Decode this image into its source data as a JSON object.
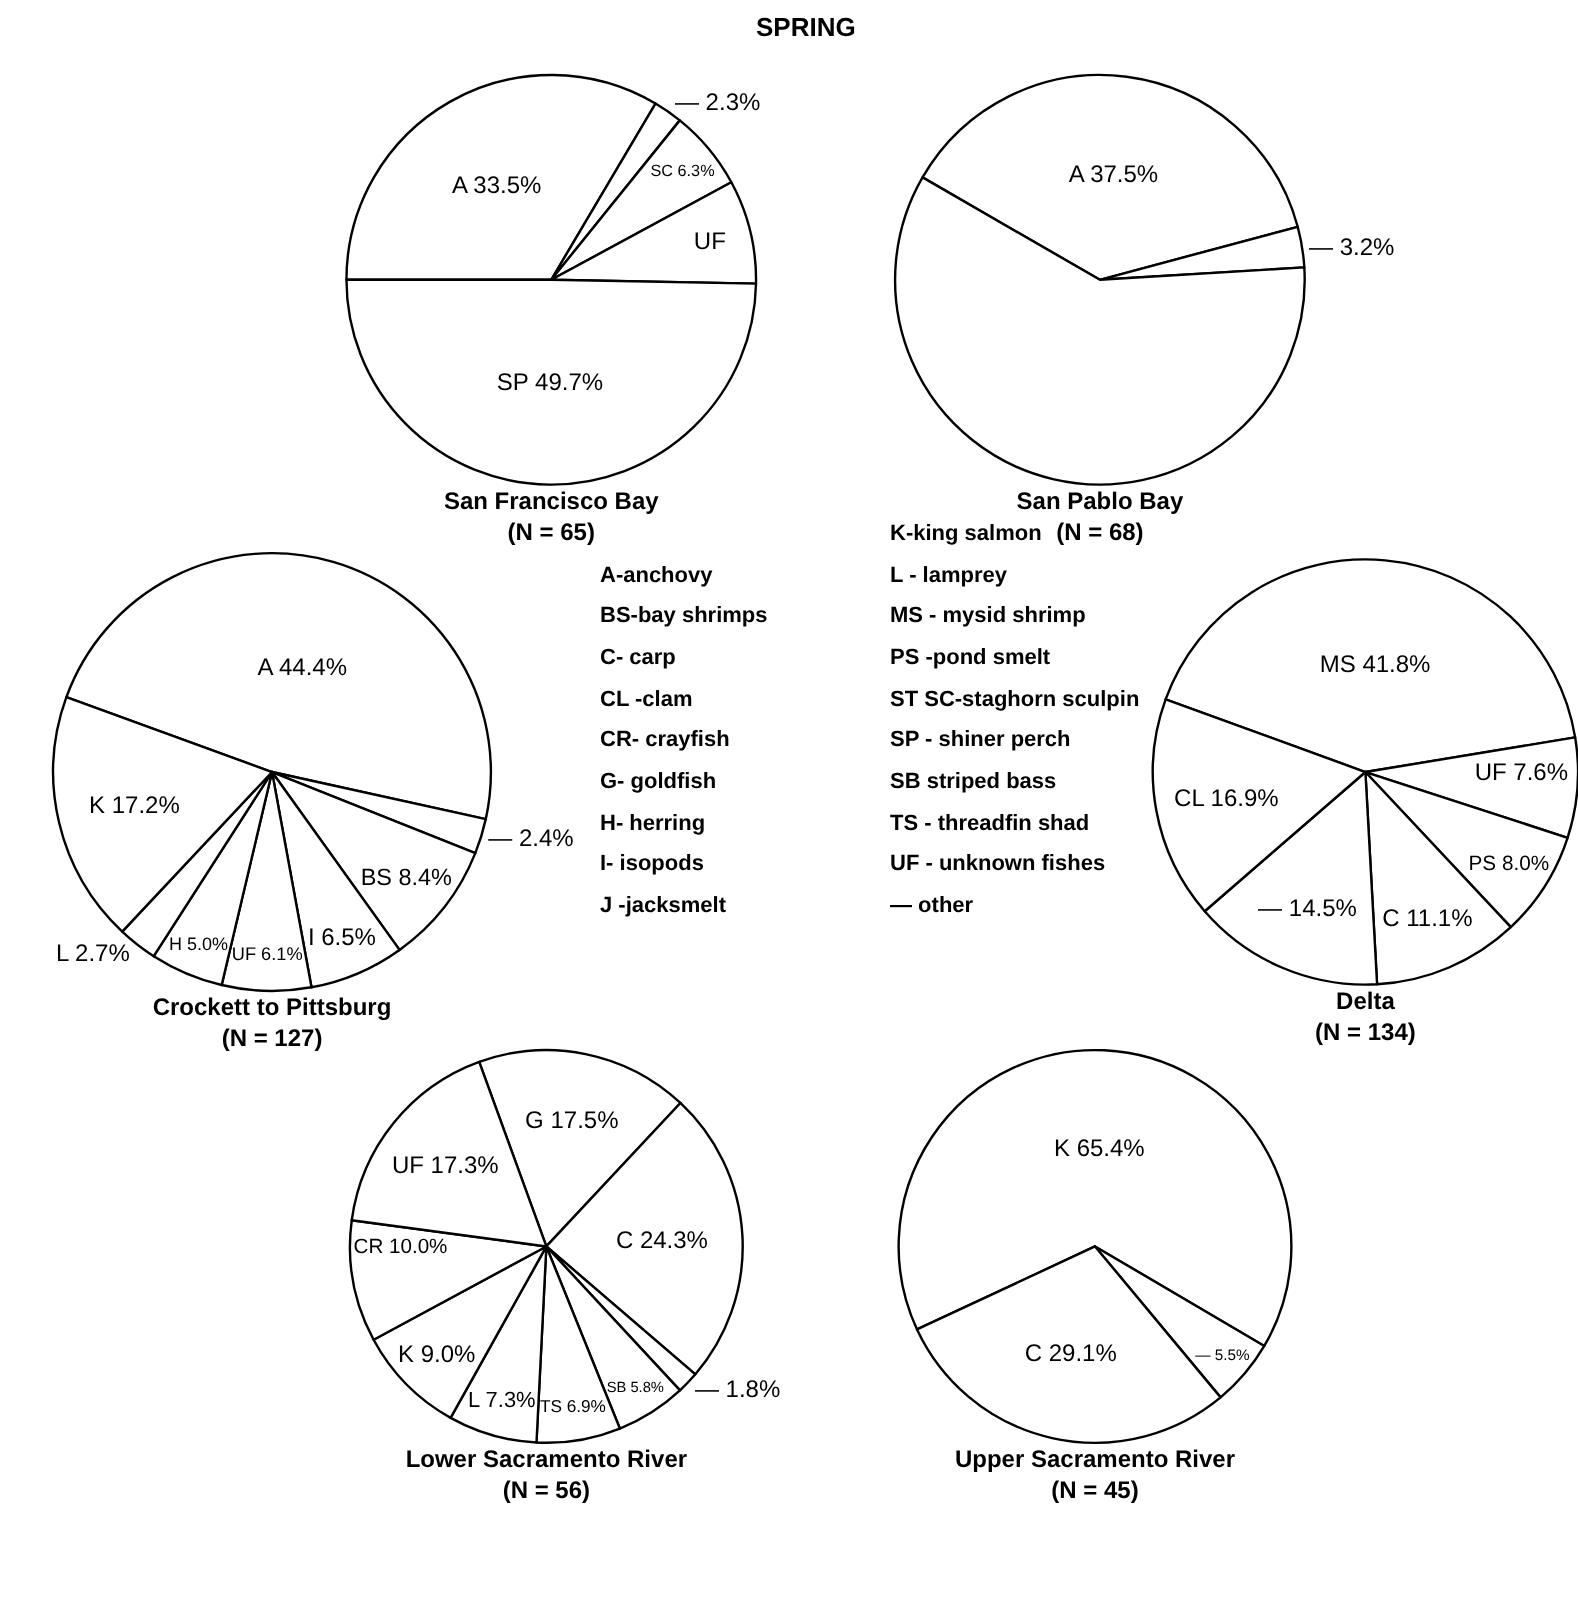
{
  "chart_data": [
    {
      "type": "other",
      "title": "SPRING",
      "annotations": [
        "A-anchovy",
        "BS-bay shrimps",
        "C- carp",
        "CL -clam",
        "CR- crayfish",
        "G- goldfish",
        "H- herring",
        "I- isopods",
        "J -jacksmelt",
        "K-king salmon",
        "L - lamprey",
        "MS - mysid shrimp",
        "PS -pond smelt",
        "ST SC-staghorn sculpin",
        "SP - shiner perch",
        "SB striped bass",
        "TS - threadfin shad",
        "UF - unknown fishes",
        "— other"
      ]
    },
    {
      "type": "pie",
      "title": "San Francisco Bay",
      "subtitle": "(N = 65)",
      "categories": [
        "A",
        "—",
        "SC",
        "UF",
        "SP"
      ],
      "values": [
        33.5,
        2.3,
        6.3,
        8.2,
        49.7
      ],
      "value_labels": [
        "33.5%",
        "2.3%",
        "6.3%",
        null,
        "49.7%"
      ],
      "colors": [
        "#ffffff",
        "#ffffff",
        "#ffffff",
        "#ffffff",
        "#ffffff"
      ]
    },
    {
      "type": "pie",
      "title": "San Pablo Bay",
      "subtitle": "(N = 68)",
      "categories": [
        "A",
        "—",
        null
      ],
      "values": [
        37.5,
        3.2,
        59.3
      ],
      "value_labels": [
        "37.5%",
        "3.2%",
        null
      ],
      "colors": [
        "#ffffff",
        "#ffffff",
        "#ffffff"
      ]
    },
    {
      "type": "pie",
      "title": "Crockett to Pittsburg",
      "subtitle": "(N = 127)",
      "categories": [
        "A",
        "—",
        "BS",
        "I",
        "UF",
        "H",
        "L",
        "K"
      ],
      "values": [
        44.4,
        2.4,
        8.4,
        6.5,
        6.1,
        5.0,
        2.7,
        17.2
      ],
      "value_labels": [
        "44.4%",
        "2.4%",
        "8.4%",
        "6.5%",
        "6.1%",
        "5.0%",
        "2.7%",
        "17.2%"
      ],
      "colors": [
        "#ffffff",
        "#ffffff",
        "#ffffff",
        "#ffffff",
        "#ffffff",
        "#ffffff",
        "#ffffff",
        "#ffffff"
      ]
    },
    {
      "type": "pie",
      "title": "Delta",
      "subtitle": "(N = 134)",
      "categories": [
        "MS",
        "UF",
        "PS",
        "C",
        "—",
        "CL"
      ],
      "values": [
        41.8,
        7.6,
        8.0,
        11.1,
        14.5,
        16.9
      ],
      "value_labels": [
        "41.8%",
        "7.6%",
        "8.0%",
        "11.1%",
        "14.5%",
        "16.9%"
      ],
      "colors": [
        "#ffffff",
        "#ffffff",
        "#ffffff",
        "#ffffff",
        "#ffffff",
        "#ffffff"
      ]
    },
    {
      "type": "pie",
      "title": "Lower Sacramento River",
      "subtitle": "(N = 56)",
      "categories": [
        "G",
        "C",
        "—",
        "SB",
        "TS",
        "L",
        "K",
        "CR",
        "UF"
      ],
      "values": [
        17.5,
        24.3,
        1.8,
        5.8,
        6.9,
        7.3,
        9.0,
        10.0,
        17.3
      ],
      "value_labels": [
        "17.5%",
        "24.3%",
        "1.8%",
        "5.8%",
        "6.9%",
        "7.3%",
        "9.0%",
        "10.0%",
        "17.3%"
      ],
      "colors": [
        "#ffffff",
        "#ffffff",
        "#ffffff",
        "#ffffff",
        "#ffffff",
        "#ffffff",
        "#ffffff",
        "#ffffff",
        "#ffffff"
      ]
    },
    {
      "type": "pie",
      "title": "Upper Sacramento River",
      "subtitle": "(N = 45)",
      "categories": [
        "K",
        "—",
        "C"
      ],
      "values": [
        65.4,
        5.5,
        29.1
      ],
      "value_labels": [
        "65.4%",
        "5.5%",
        "29.1%"
      ],
      "colors": [
        "#ffffff",
        "#ffffff",
        "#ffffff"
      ]
    }
  ]
}
